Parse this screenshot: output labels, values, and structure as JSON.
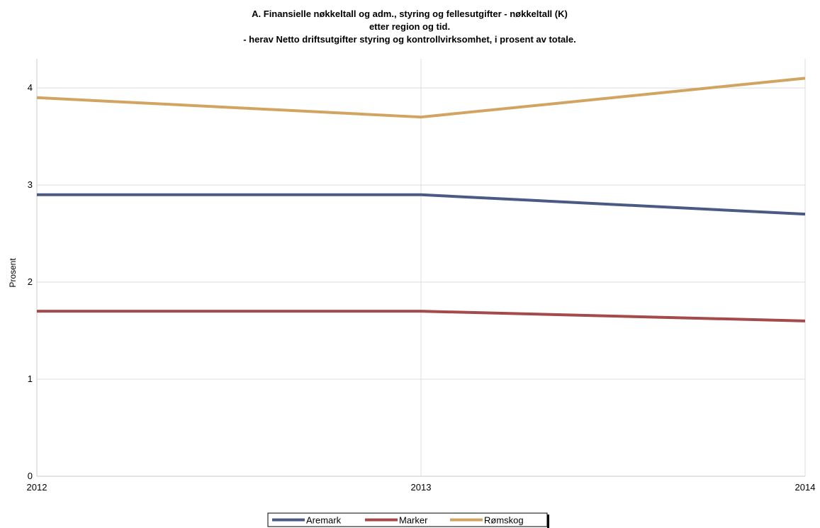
{
  "chart_data": {
    "type": "line",
    "title_lines": [
      "A. Finansielle nøkkeltall og adm., styring og fellesutgifter - nøkkeltall (K)",
      "etter region og tid.",
      "- herav Netto driftsutgifter styring og kontrollvirksomhet, i prosent av totale."
    ],
    "xlabel": "",
    "ylabel": "Prosent",
    "x": [
      "2012",
      "2013",
      "2014"
    ],
    "ylim": [
      0,
      4.3
    ],
    "yticks": [
      0,
      1,
      2,
      3,
      4
    ],
    "grid": true,
    "legend_position": "bottom",
    "series": [
      {
        "name": "Aremark",
        "color": "#4a5a82",
        "values": [
          2.9,
          2.9,
          2.7
        ]
      },
      {
        "name": "Marker",
        "color": "#a44a4a",
        "values": [
          1.7,
          1.7,
          1.6
        ]
      },
      {
        "name": "Rømskog",
        "color": "#d2a461",
        "values": [
          3.9,
          3.7,
          4.1
        ]
      }
    ]
  }
}
